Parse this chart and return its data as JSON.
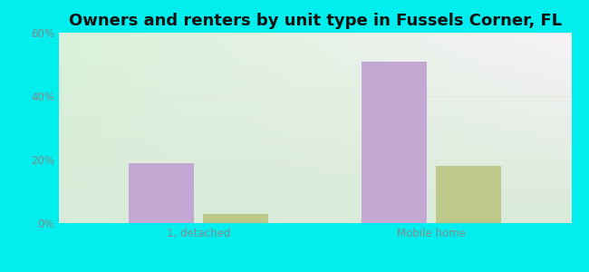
{
  "title": "Owners and renters by unit type in Fussels Corner, FL",
  "categories": [
    "1, detached",
    "Mobile home"
  ],
  "owner_values": [
    19,
    51
  ],
  "renter_values": [
    3,
    18
  ],
  "owner_color": "#c4a8d4",
  "renter_color": "#bdc88a",
  "ylim": [
    0,
    60
  ],
  "yticks": [
    0,
    20,
    40,
    60
  ],
  "ytick_labels": [
    "0%",
    "20%",
    "40%",
    "60%"
  ],
  "background_color": "#00eeee",
  "bar_width": 0.28,
  "title_fontsize": 13,
  "axis_fontsize": 8.5,
  "legend_fontsize": 9,
  "grid_color": "#e0e8d8",
  "tick_color": "#888888"
}
